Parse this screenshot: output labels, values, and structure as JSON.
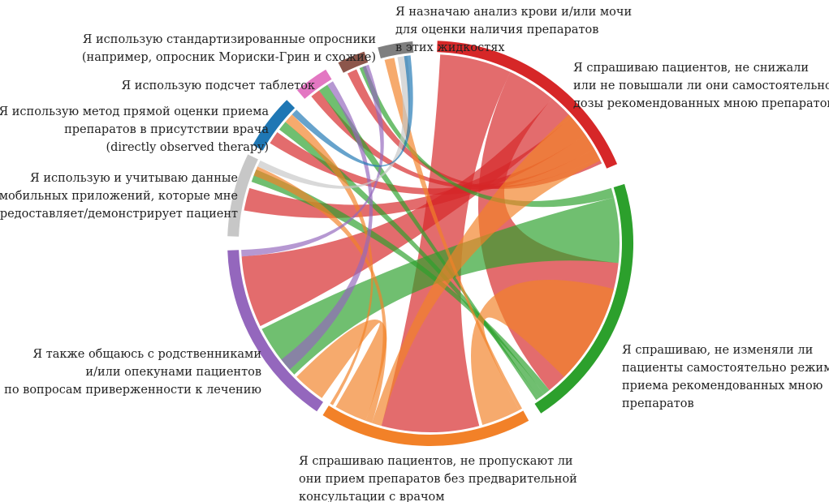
{
  "chart_data": {
    "type": "chord",
    "groups": [
      {
        "id": "g1",
        "color": "#d62728",
        "label_lines": [
          "Я спрашиваю пациентов, не снижали",
          "или не повышали ли они самостоятельно",
          "дозы рекомендованных мною препаратов"
        ]
      },
      {
        "id": "g2",
        "color": "#2ca02c",
        "label_lines": [
          "Я спрашиваю, не изменяли ли",
          "пациенты самостоятельно режим",
          "приема рекомендованных мною",
          "препаратов"
        ]
      },
      {
        "id": "g3",
        "color": "#f28128",
        "label_lines": [
          "Я спрашиваю пациентов, не пропускают ли",
          "они прием препаратов без предварительной",
          "консультации с врачом"
        ]
      },
      {
        "id": "g4",
        "color": "#9467bd",
        "label_lines": [
          "Я также общаюсь с родственниками",
          "и/или опекунами пациентов",
          "по вопросам приверженности к лечению"
        ]
      },
      {
        "id": "g5",
        "color": "#c7c7c7",
        "label_lines": [
          "Я использую и учитываю данные",
          "мобильных приложений, которые мне",
          "предоставляет/демонстрирует пациент"
        ]
      },
      {
        "id": "g6",
        "color": "#1f77b4",
        "label_lines": [
          "Я использую метод прямой оценки приема",
          "препаратов в присутствии врача",
          "(directly observed therapy)"
        ]
      },
      {
        "id": "g7",
        "color": "#e377c2",
        "label_lines": [
          "Я использую подсчет таблеток"
        ]
      },
      {
        "id": "g8",
        "color": "#8c564b",
        "label_lines": [
          "Я использую стандартизированные опросники",
          "(например, опросник Мориски-Грин и схожие)"
        ]
      },
      {
        "id": "g9",
        "color": "#7f7f7f",
        "label_lines": [
          "Я назначаю анализ крови и/или мочи",
          "для оценки наличия препаратов",
          "в этих жидкостях"
        ]
      }
    ]
  }
}
